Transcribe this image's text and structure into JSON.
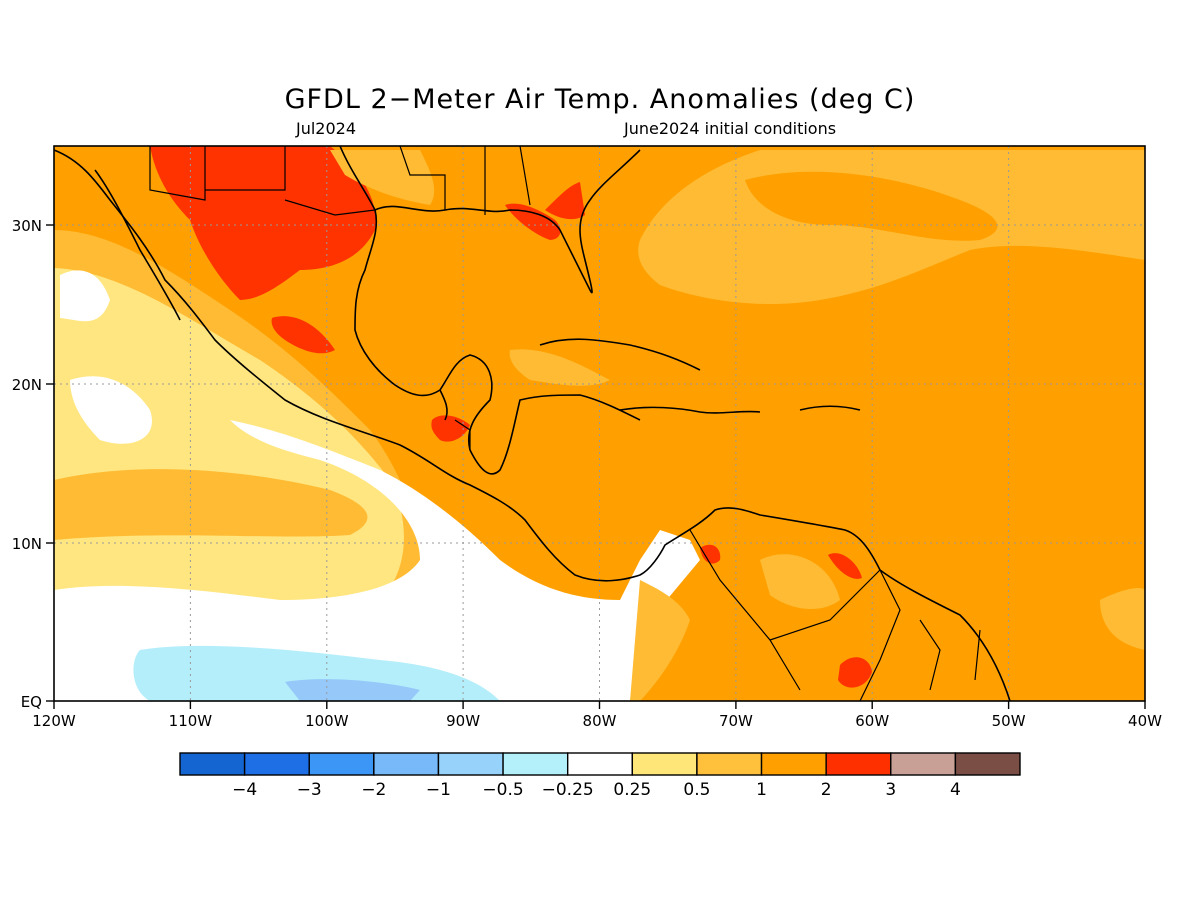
{
  "title": "GFDL 2−Meter Air Temp. Anomalies (deg C)",
  "subtitle_left": "Jul2024",
  "subtitle_right": "June2024 initial conditions",
  "map": {
    "lon_labels": [
      "120W",
      "110W",
      "100W",
      "90W",
      "80W",
      "70W",
      "60W",
      "50W",
      "40W"
    ],
    "lat_labels": [
      "30N",
      "20N",
      "10N",
      "EQ"
    ],
    "colors": {
      "ocean_base": "#ffa000",
      "band_2_3": "#ff3300",
      "band_1_2": "#ffa000",
      "band_05_1": "#ffbb33",
      "band_025_05": "#ffe680",
      "band_neutral": "#ffffff",
      "band_m025_m05": "#b4eefa",
      "band_m05_m1": "#96c8fa"
    }
  },
  "colorbar": {
    "colors": [
      "#1464d2",
      "#1e6ee6",
      "#3c96f5",
      "#78b9fa",
      "#96d2fa",
      "#b4f0fa",
      "#ffffff",
      "#ffe678",
      "#ffc03c",
      "#ffa000",
      "#ff3000",
      "#c8a096",
      "#7a4e45"
    ],
    "labels": [
      "−4",
      "−3",
      "−2",
      "−1",
      "−0.5",
      "−0.25",
      "0.25",
      "0.5",
      "1",
      "2",
      "3",
      "4"
    ]
  }
}
